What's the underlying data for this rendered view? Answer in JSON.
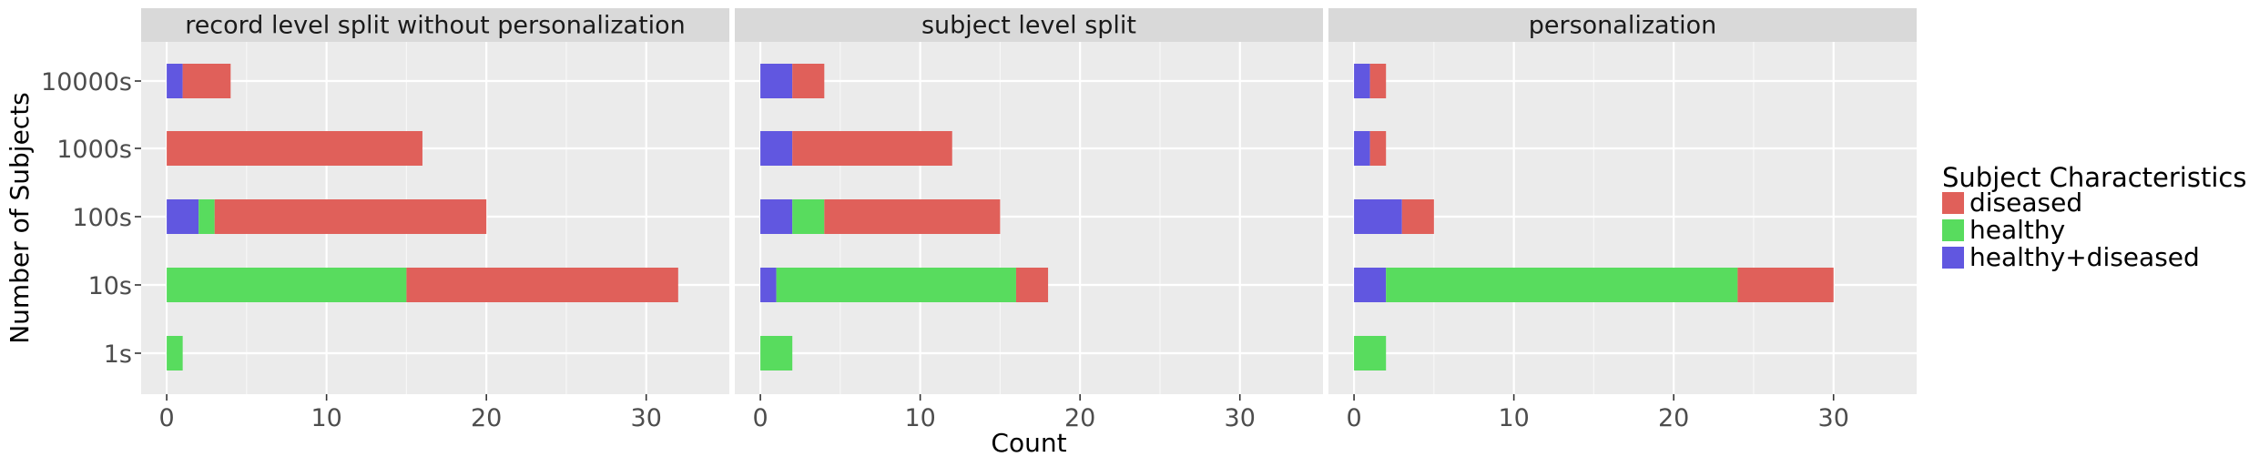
{
  "chart_data": {
    "type": "bar",
    "orientation": "horizontal",
    "stacked": true,
    "facets": [
      {
        "title": "record level split without personalization",
        "categories": [
          "1s",
          "10s",
          "100s",
          "1000s",
          "10000s"
        ],
        "series": [
          {
            "name": "healthy+diseased",
            "values": [
              0,
              0,
              2,
              0,
              1
            ]
          },
          {
            "name": "healthy",
            "values": [
              1,
              15,
              1,
              0,
              0
            ]
          },
          {
            "name": "diseased",
            "values": [
              0,
              17,
              17,
              16,
              3
            ]
          }
        ]
      },
      {
        "title": "subject level split",
        "categories": [
          "1s",
          "10s",
          "100s",
          "1000s",
          "10000s"
        ],
        "series": [
          {
            "name": "healthy+diseased",
            "values": [
              0,
              1,
              2,
              2,
              2
            ]
          },
          {
            "name": "healthy",
            "values": [
              2,
              15,
              2,
              0,
              0
            ]
          },
          {
            "name": "diseased",
            "values": [
              0,
              2,
              11,
              10,
              2
            ]
          }
        ]
      },
      {
        "title": "personalization",
        "categories": [
          "1s",
          "10s",
          "100s",
          "1000s",
          "10000s"
        ],
        "series": [
          {
            "name": "healthy+diseased",
            "values": [
              0,
              2,
              3,
              1,
              1
            ]
          },
          {
            "name": "healthy",
            "values": [
              2,
              22,
              0,
              0,
              0
            ]
          },
          {
            "name": "diseased",
            "values": [
              0,
              6,
              2,
              1,
              1
            ]
          }
        ]
      }
    ],
    "xlabel": "Count",
    "ylabel": "Number of Subjects",
    "xlim": [
      -1.6,
      35.2
    ],
    "xticks": [
      "0",
      "10",
      "20",
      "30"
    ],
    "legend": {
      "title": "Subject Characteristics",
      "position": "right",
      "entries": [
        "diseased",
        "healthy",
        "healthy+diseased"
      ]
    },
    "colors": {
      "diseased": "#e0605a",
      "healthy": "#58dc5e",
      "healthy+diseased": "#6157e0"
    },
    "grid": true
  }
}
